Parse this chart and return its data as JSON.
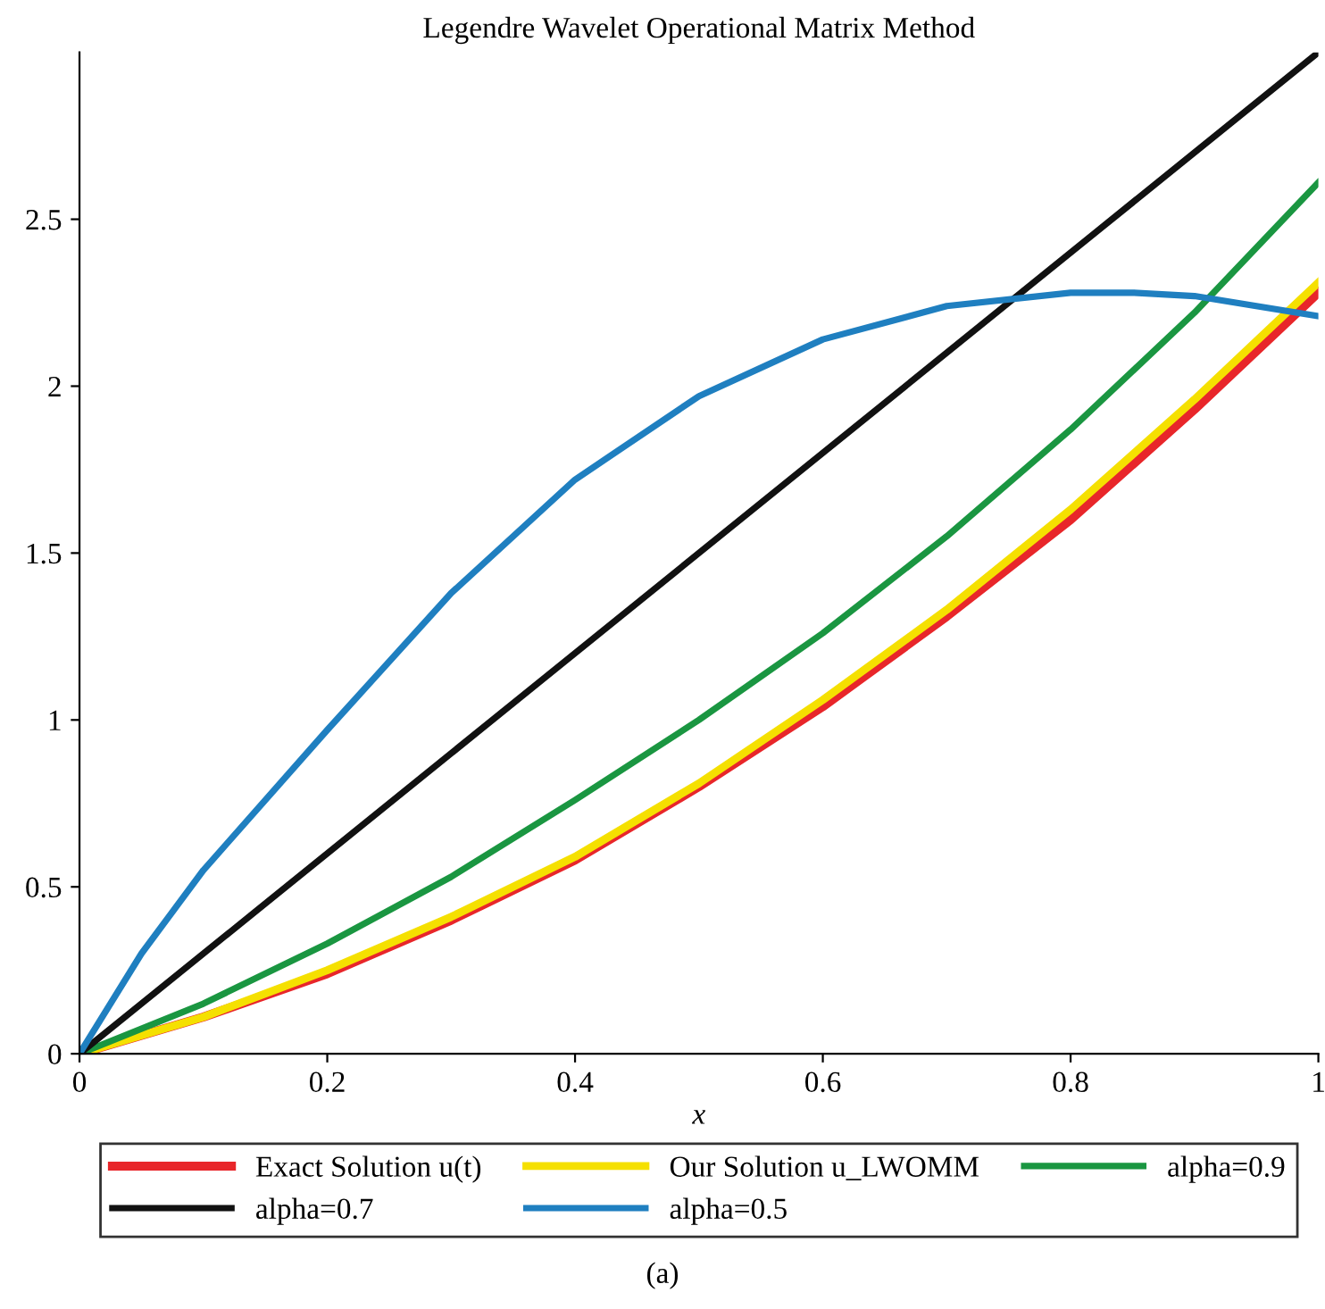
{
  "chart_data": {
    "type": "line",
    "title": "Legendre Wavelet Operational Matrix Method",
    "xlabel": "x",
    "annotations": [
      "(a)"
    ],
    "xlim": [
      0,
      1
    ],
    "ylim": [
      0,
      3
    ],
    "xticks": [
      0,
      0.2,
      0.4,
      0.6,
      0.8,
      1
    ],
    "yticks": [
      0,
      0.5,
      1,
      1.5,
      2,
      2.5
    ],
    "grid": false,
    "legend": "bottom",
    "marker": "none",
    "line_style": "solid",
    "series": [
      {
        "name": "Exact Solution u(t)",
        "color": "#e8262a",
        "x": [
          0,
          0.1,
          0.2,
          0.3,
          0.4,
          0.5,
          0.6,
          0.7,
          0.8,
          0.9,
          1
        ],
        "values": [
          0,
          0.11,
          0.24,
          0.4,
          0.58,
          0.8,
          1.04,
          1.31,
          1.6,
          1.93,
          2.28
        ]
      },
      {
        "name": "Our Solution u_LWOMM",
        "color": "#f5e000",
        "x": [
          0,
          0.1,
          0.2,
          0.3,
          0.4,
          0.5,
          0.6,
          0.7,
          0.8,
          0.9,
          1
        ],
        "values": [
          0,
          0.11,
          0.25,
          0.41,
          0.59,
          0.81,
          1.06,
          1.33,
          1.63,
          1.96,
          2.31
        ]
      },
      {
        "name": "alpha=0.9",
        "color": "#1a9641",
        "x": [
          0,
          0.1,
          0.2,
          0.3,
          0.4,
          0.5,
          0.6,
          0.7,
          0.8,
          0.9,
          1
        ],
        "values": [
          0,
          0.15,
          0.33,
          0.53,
          0.76,
          1.0,
          1.26,
          1.55,
          1.87,
          2.22,
          2.61
        ]
      },
      {
        "name": "alpha=0.7",
        "color": "#111111",
        "x": [
          0,
          1
        ],
        "values": [
          0,
          3
        ]
      },
      {
        "name": "alpha=0.5",
        "color": "#1f7fc0",
        "x": [
          0,
          0.05,
          0.1,
          0.2,
          0.3,
          0.4,
          0.5,
          0.6,
          0.7,
          0.8,
          0.85,
          0.9,
          1
        ],
        "values": [
          0,
          0.3,
          0.55,
          0.97,
          1.38,
          1.72,
          1.97,
          2.14,
          2.24,
          2.28,
          2.28,
          2.27,
          2.21
        ]
      }
    ]
  }
}
